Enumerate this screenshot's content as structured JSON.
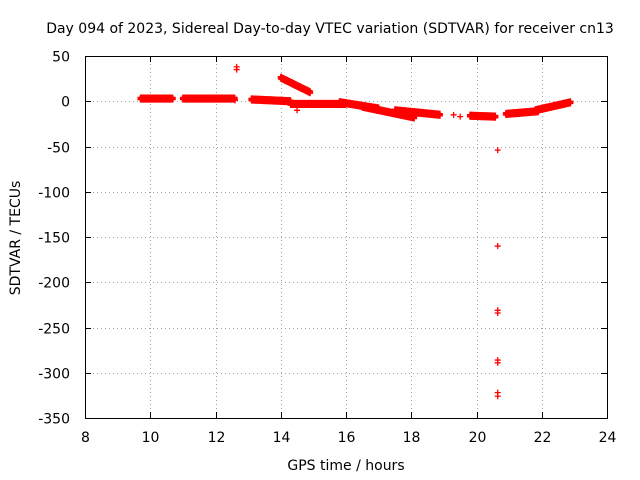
{
  "chart_data": {
    "type": "scatter",
    "title": "Day 094 of 2023, Sidereal Day-to-day VTEC variation (SDTVAR) for receiver cn13",
    "xlabel": "GPS time / hours",
    "ylabel": "SDTVAR / TECUs",
    "xlim": [
      8,
      24
    ],
    "ylim": [
      -350,
      50
    ],
    "xticks": [
      "8",
      "10",
      "12",
      "14",
      "16",
      "18",
      "20",
      "22",
      "24"
    ],
    "yticks": [
      "50",
      "0",
      "-50",
      "-100",
      "-150",
      "-200",
      "-250",
      "-300",
      "-350"
    ],
    "grid": true,
    "marker": "+",
    "color": "#ff0000",
    "series": [
      {
        "name": "SDTVAR",
        "segments": [
          {
            "x0": 9.7,
            "x1": 10.7,
            "y0": 3,
            "y1": 3
          },
          {
            "x0": 11.0,
            "x1": 12.6,
            "y0": 3,
            "y1": 3
          },
          {
            "x0": 13.1,
            "x1": 14.3,
            "y0": 2,
            "y1": 0
          },
          {
            "x0": 14.3,
            "x1": 16.0,
            "y0": -3,
            "y1": -3
          },
          {
            "x0": 15.8,
            "x1": 17.0,
            "y0": -1,
            "y1": -8
          },
          {
            "x0": 16.5,
            "x1": 18.1,
            "y0": -6,
            "y1": -18
          },
          {
            "x0": 17.5,
            "x1": 18.9,
            "y0": -10,
            "y1": -15
          },
          {
            "x0": 19.8,
            "x1": 20.6,
            "y0": -16,
            "y1": -17
          },
          {
            "x0": 20.9,
            "x1": 21.9,
            "y0": -14,
            "y1": -11
          },
          {
            "x0": 21.8,
            "x1": 22.9,
            "y0": -10,
            "y1": -1
          },
          {
            "x0": 14.0,
            "x1": 14.9,
            "y0": 26,
            "y1": 10
          }
        ],
        "points": [
          {
            "x": 12.65,
            "y": 38
          },
          {
            "x": 12.65,
            "y": 35
          },
          {
            "x": 12.6,
            "y": 1
          },
          {
            "x": 14.5,
            "y": -10
          },
          {
            "x": 19.3,
            "y": -15
          },
          {
            "x": 19.5,
            "y": -17
          },
          {
            "x": 20.65,
            "y": -54
          },
          {
            "x": 20.65,
            "y": -160
          },
          {
            "x": 20.65,
            "y": -231
          },
          {
            "x": 20.65,
            "y": -234
          },
          {
            "x": 20.65,
            "y": -286
          },
          {
            "x": 20.65,
            "y": -289
          },
          {
            "x": 20.65,
            "y": -322
          },
          {
            "x": 20.65,
            "y": -326
          }
        ]
      }
    ]
  }
}
